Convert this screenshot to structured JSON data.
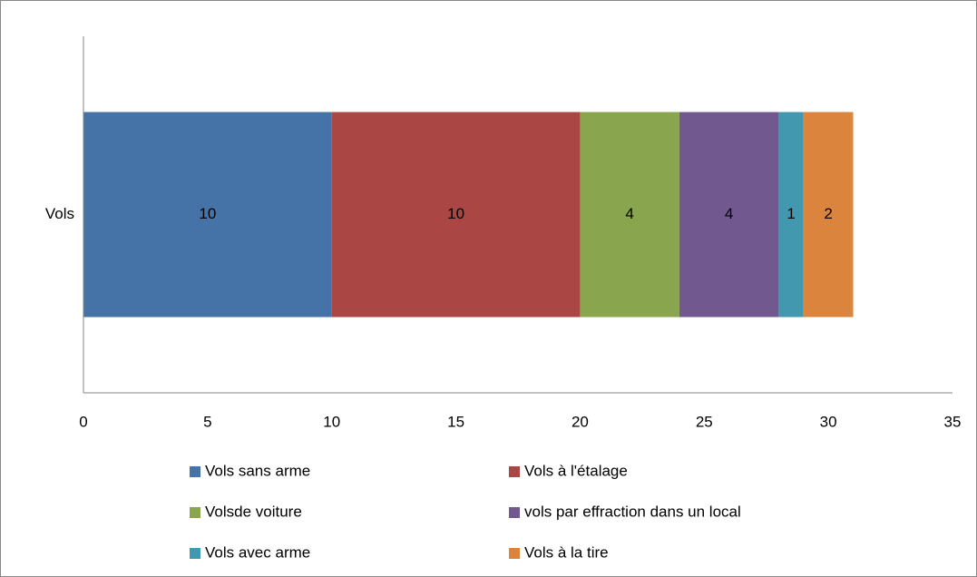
{
  "chart_data": {
    "type": "bar",
    "orientation": "horizontal",
    "stacked": true,
    "categories": [
      "Vols"
    ],
    "series": [
      {
        "name": "Vols sans arme",
        "color": "#4572a7",
        "values": [
          10
        ]
      },
      {
        "name": "Vols à l'étalage",
        "color": "#aa4643",
        "values": [
          10
        ]
      },
      {
        "name": "Volsde voiture",
        "color": "#89a54e",
        "values": [
          4
        ]
      },
      {
        "name": "vols par effraction dans un local",
        "color": "#71588f",
        "values": [
          4
        ]
      },
      {
        "name": "Vols avec arme",
        "color": "#4198af",
        "values": [
          1
        ]
      },
      {
        "name": "Vols à la tire",
        "color": "#db843d",
        "values": [
          2
        ]
      }
    ],
    "xlim": [
      0,
      35
    ],
    "xticks": [
      0,
      5,
      10,
      15,
      20,
      25,
      30,
      35
    ],
    "grid": false,
    "legend": "bottom"
  }
}
